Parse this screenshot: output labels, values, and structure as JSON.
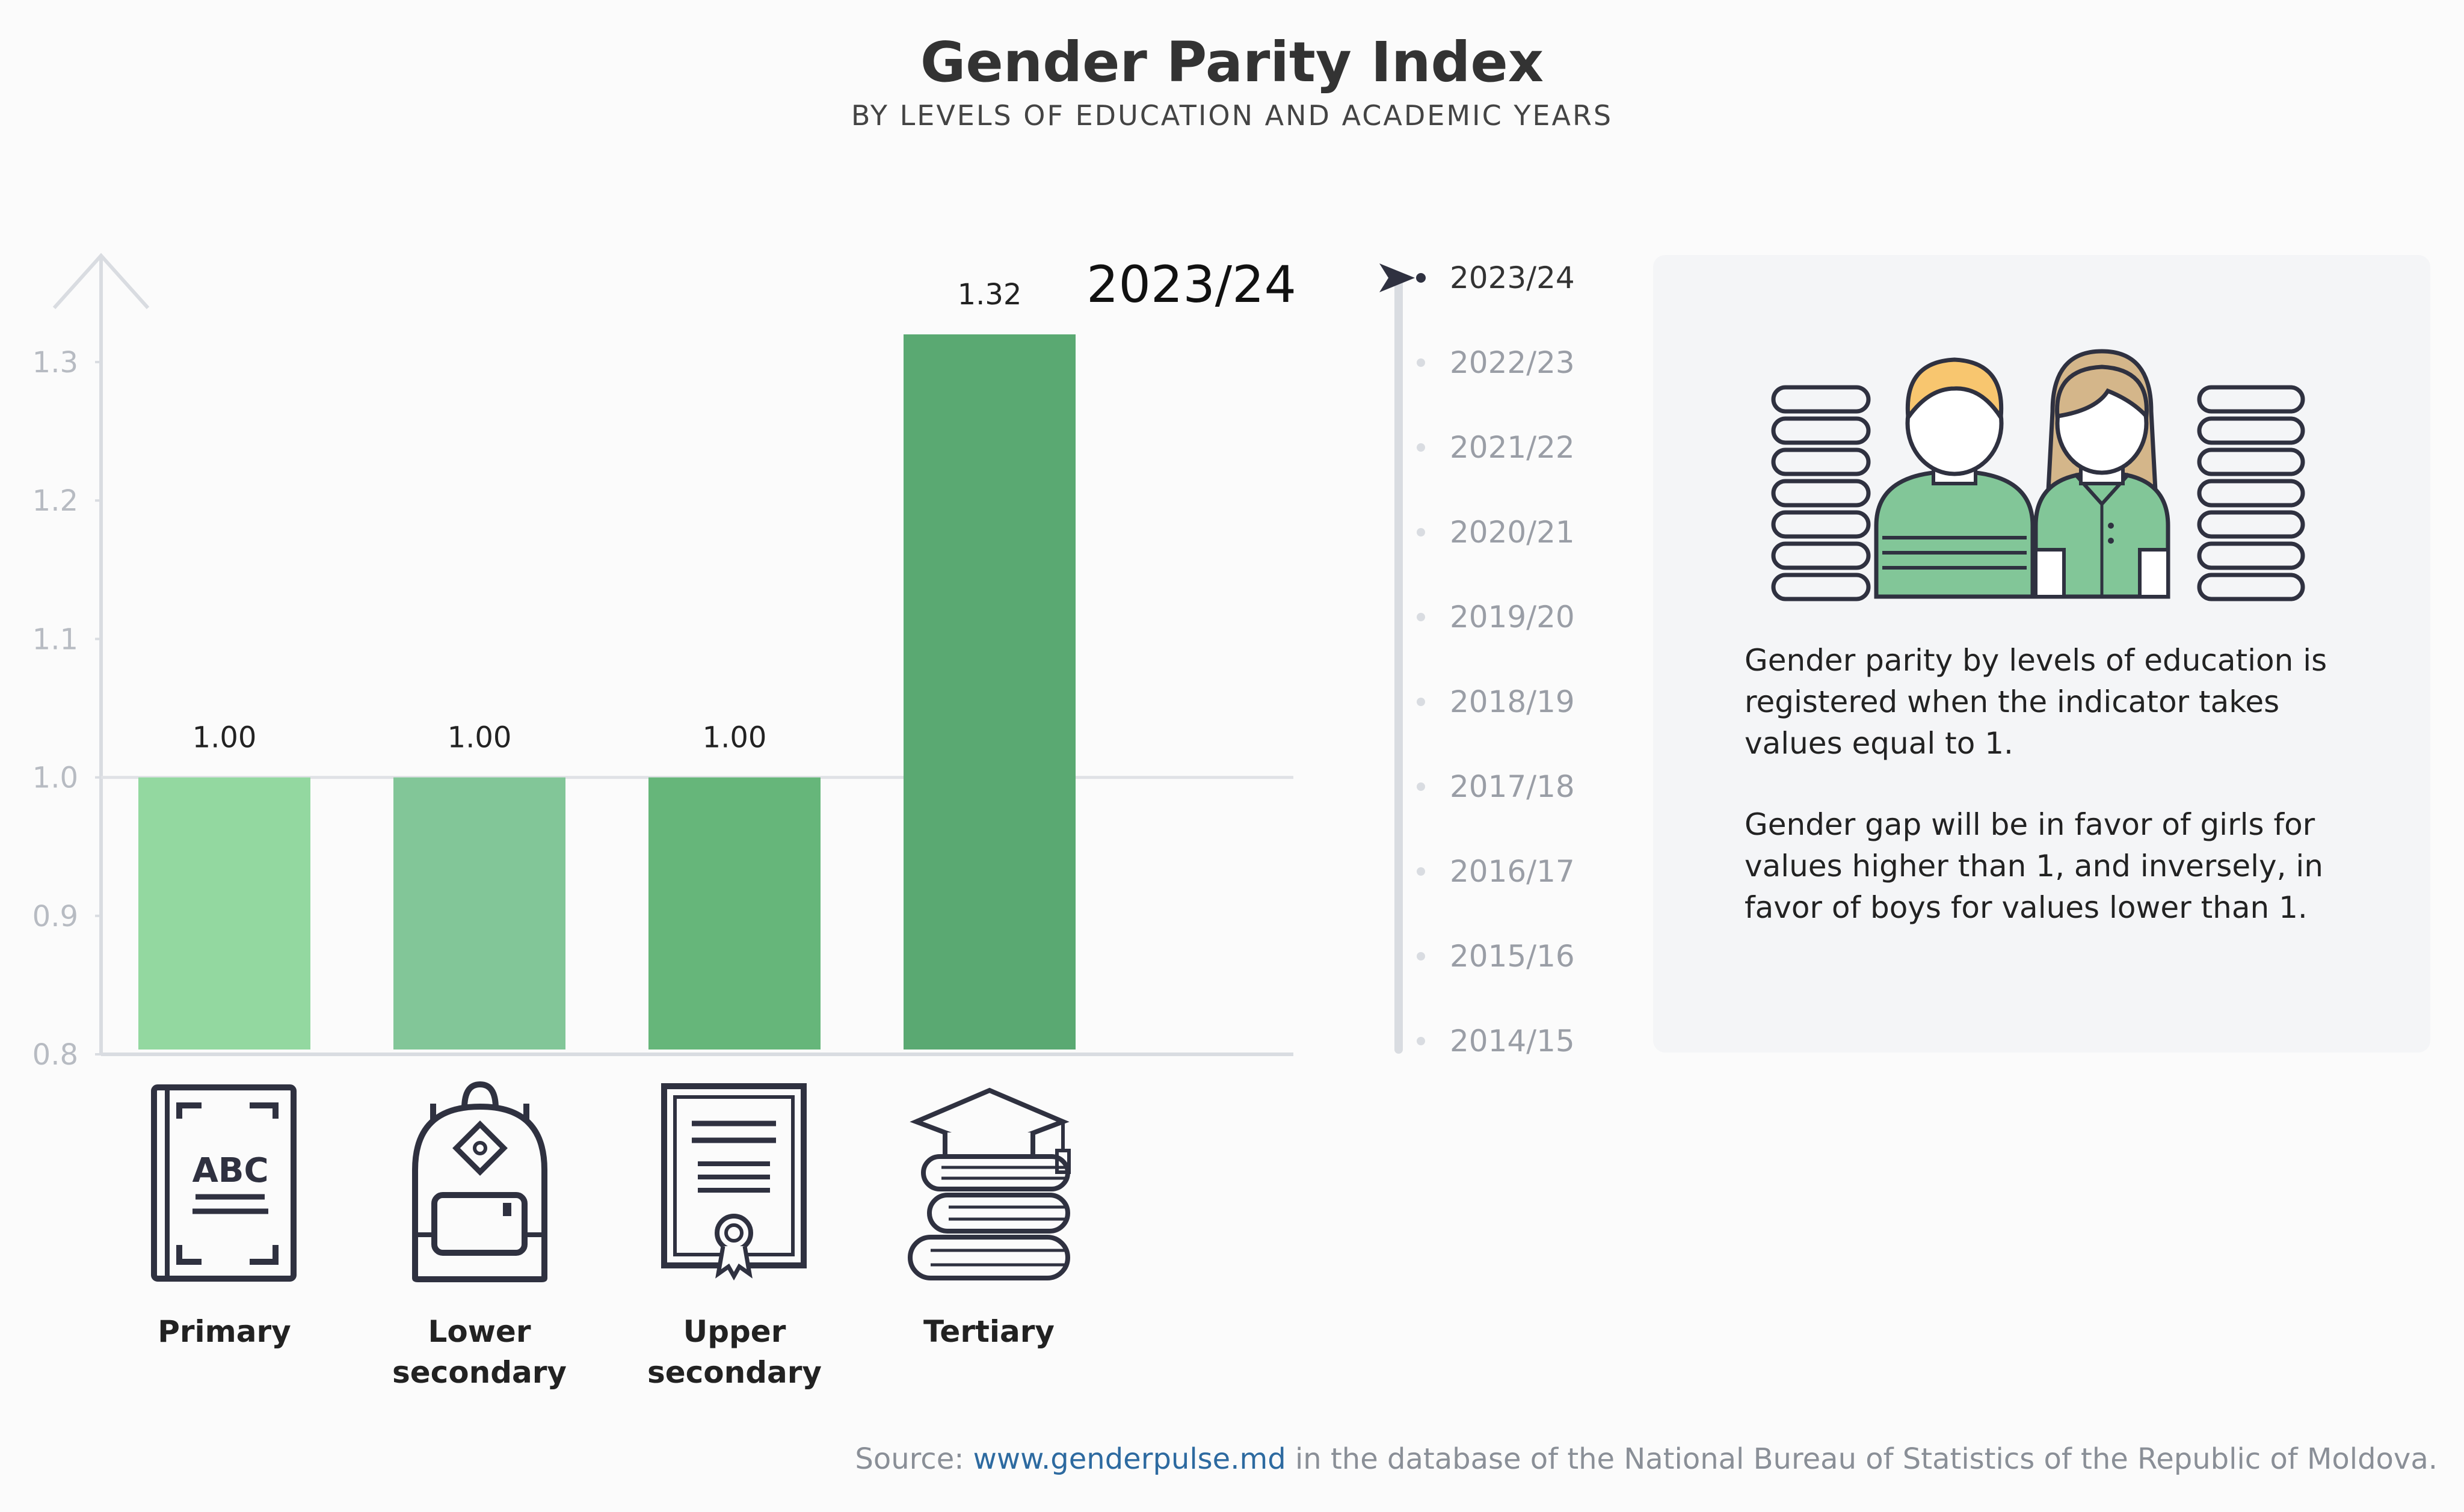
{
  "header": {
    "title": "Gender Parity Index",
    "subtitle": "BY LEVELS OF EDUCATION AND ACADEMIC YEARS"
  },
  "chart_data": {
    "type": "bar",
    "title": "Gender Parity Index",
    "subtitle": "BY LEVELS OF EDUCATION AND ACADEMIC YEARS",
    "selected_year": "2023/24",
    "categories": [
      "Primary",
      "Lower secondary",
      "Upper secondary",
      "Tertiary"
    ],
    "category_labels": [
      [
        "Primary"
      ],
      [
        "Lower",
        "secondary"
      ],
      [
        "Upper",
        "secondary"
      ],
      [
        "Tertiary"
      ]
    ],
    "values": [
      1.0,
      1.0,
      1.0,
      1.32
    ],
    "value_labels": [
      "1.00",
      "1.00",
      "1.00",
      "1.32"
    ],
    "colors": [
      "#93d8a0",
      "#82c698",
      "#66b67a",
      "#5aa972"
    ],
    "yticks": [
      "0.8",
      "0.9",
      "1.0",
      "1.1",
      "1.2",
      "1.3"
    ],
    "ylim": [
      0.8,
      1.35
    ],
    "reference_line": 1.0,
    "grid": false,
    "xlabel": "",
    "ylabel": ""
  },
  "timeline": {
    "years": [
      "2023/24",
      "2022/23",
      "2021/22",
      "2020/21",
      "2019/20",
      "2018/19",
      "2017/18",
      "2016/17",
      "2015/16",
      "2014/15"
    ],
    "active_index": 0
  },
  "info": {
    "paragraph1": "Gender parity by levels of education is registered when the indicator takes values equal to 1.",
    "paragraph2": "Gender gap will be in favor of girls for values higher than 1, and inversely, in favor of boys for values lower than 1."
  },
  "icons": {
    "primary": "abc-book-icon",
    "lower_secondary": "backpack-icon",
    "upper_secondary": "diploma-icon",
    "tertiary": "graduation-books-icon",
    "students": "students-icon",
    "timeline_pointer": "play-arrow-icon"
  },
  "source": {
    "prefix": "Source: ",
    "link": "www.genderpulse.md",
    "suffix": " in the database of the National Bureau of Statistics of the Republic of Moldova."
  }
}
